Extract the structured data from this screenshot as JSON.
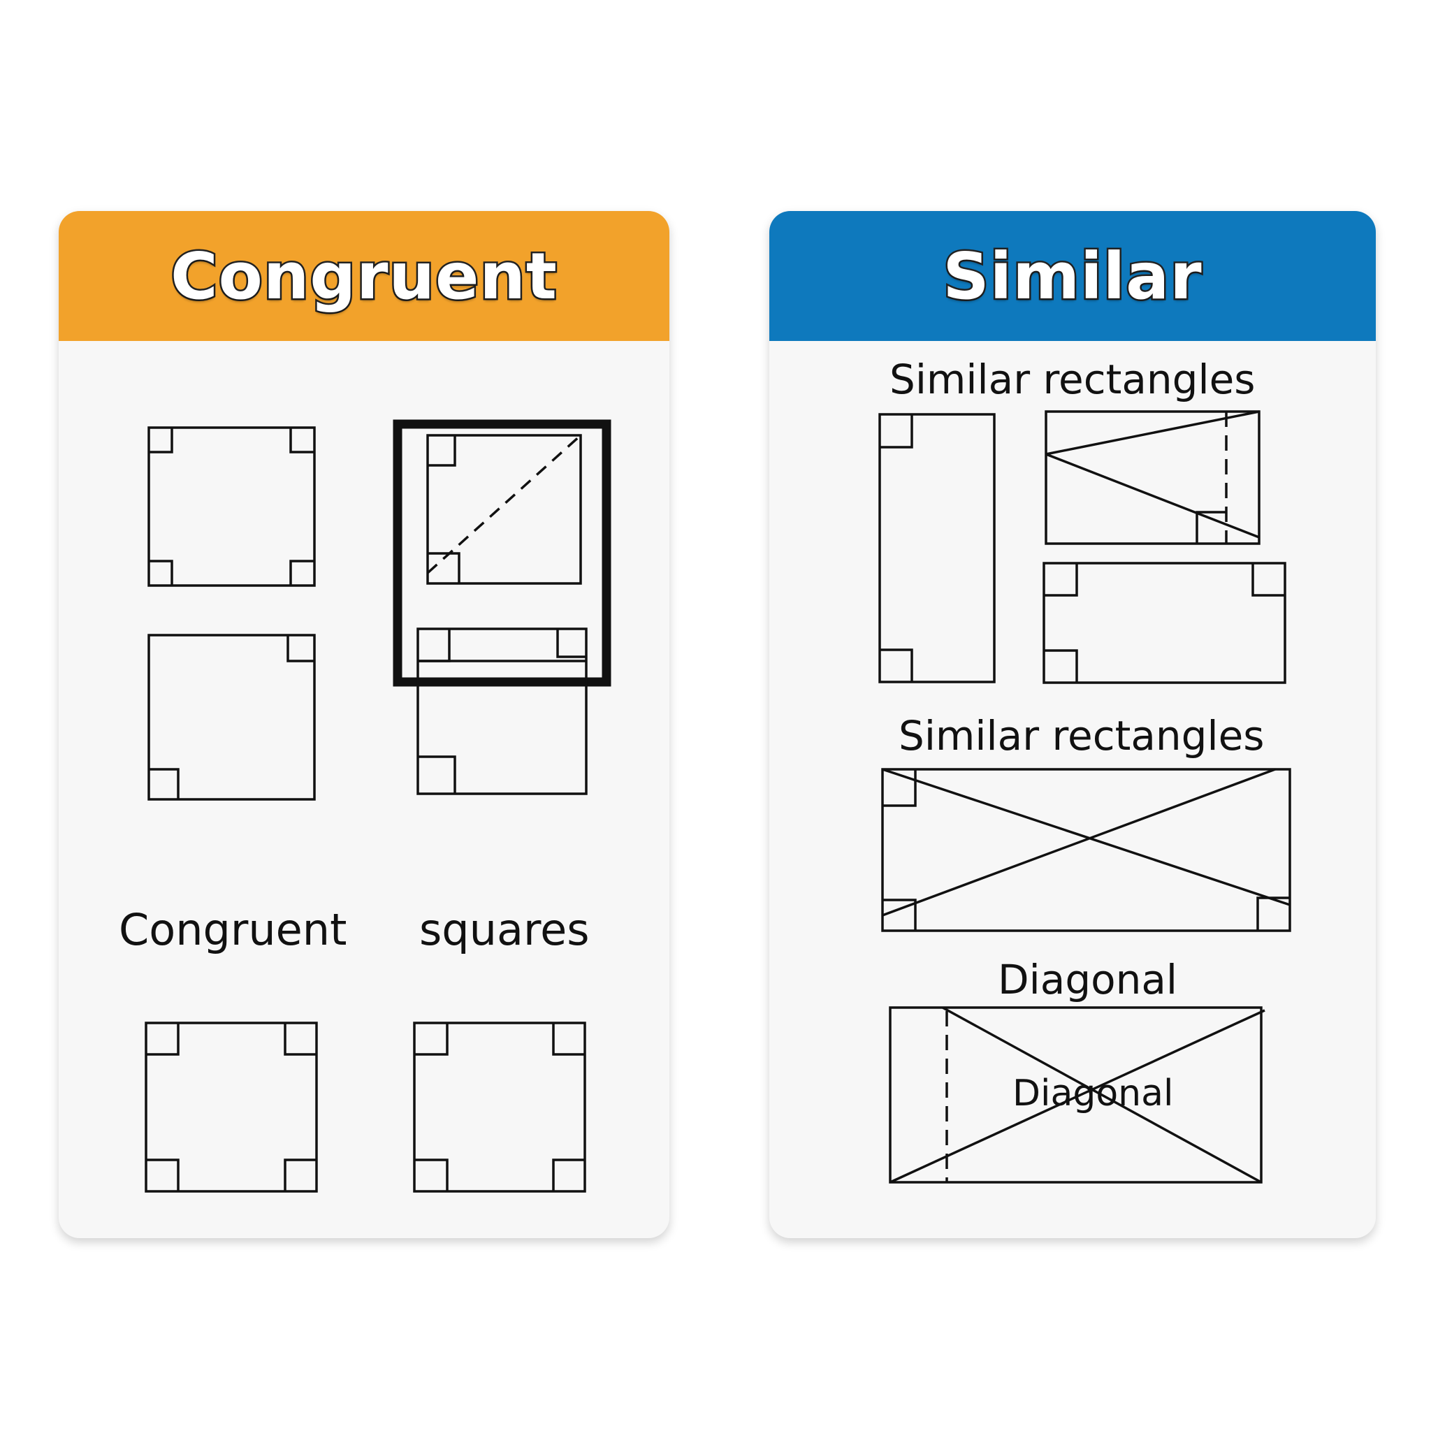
{
  "colors": {
    "congruent_header": "#F2A22B",
    "similar_header": "#0E79BD",
    "line": "#111111",
    "card_background": "#F7F7F7"
  },
  "congruent_card": {
    "title": "Congruent",
    "labels": {
      "left": "Congruent",
      "right": "squares"
    }
  },
  "similar_card": {
    "title": "Similar",
    "labels": {
      "top": "Similar rectangles",
      "middle": "Similar rectangles",
      "diagonal_heading": "Diagonal",
      "diagonal_inner": "Diagonal"
    }
  }
}
